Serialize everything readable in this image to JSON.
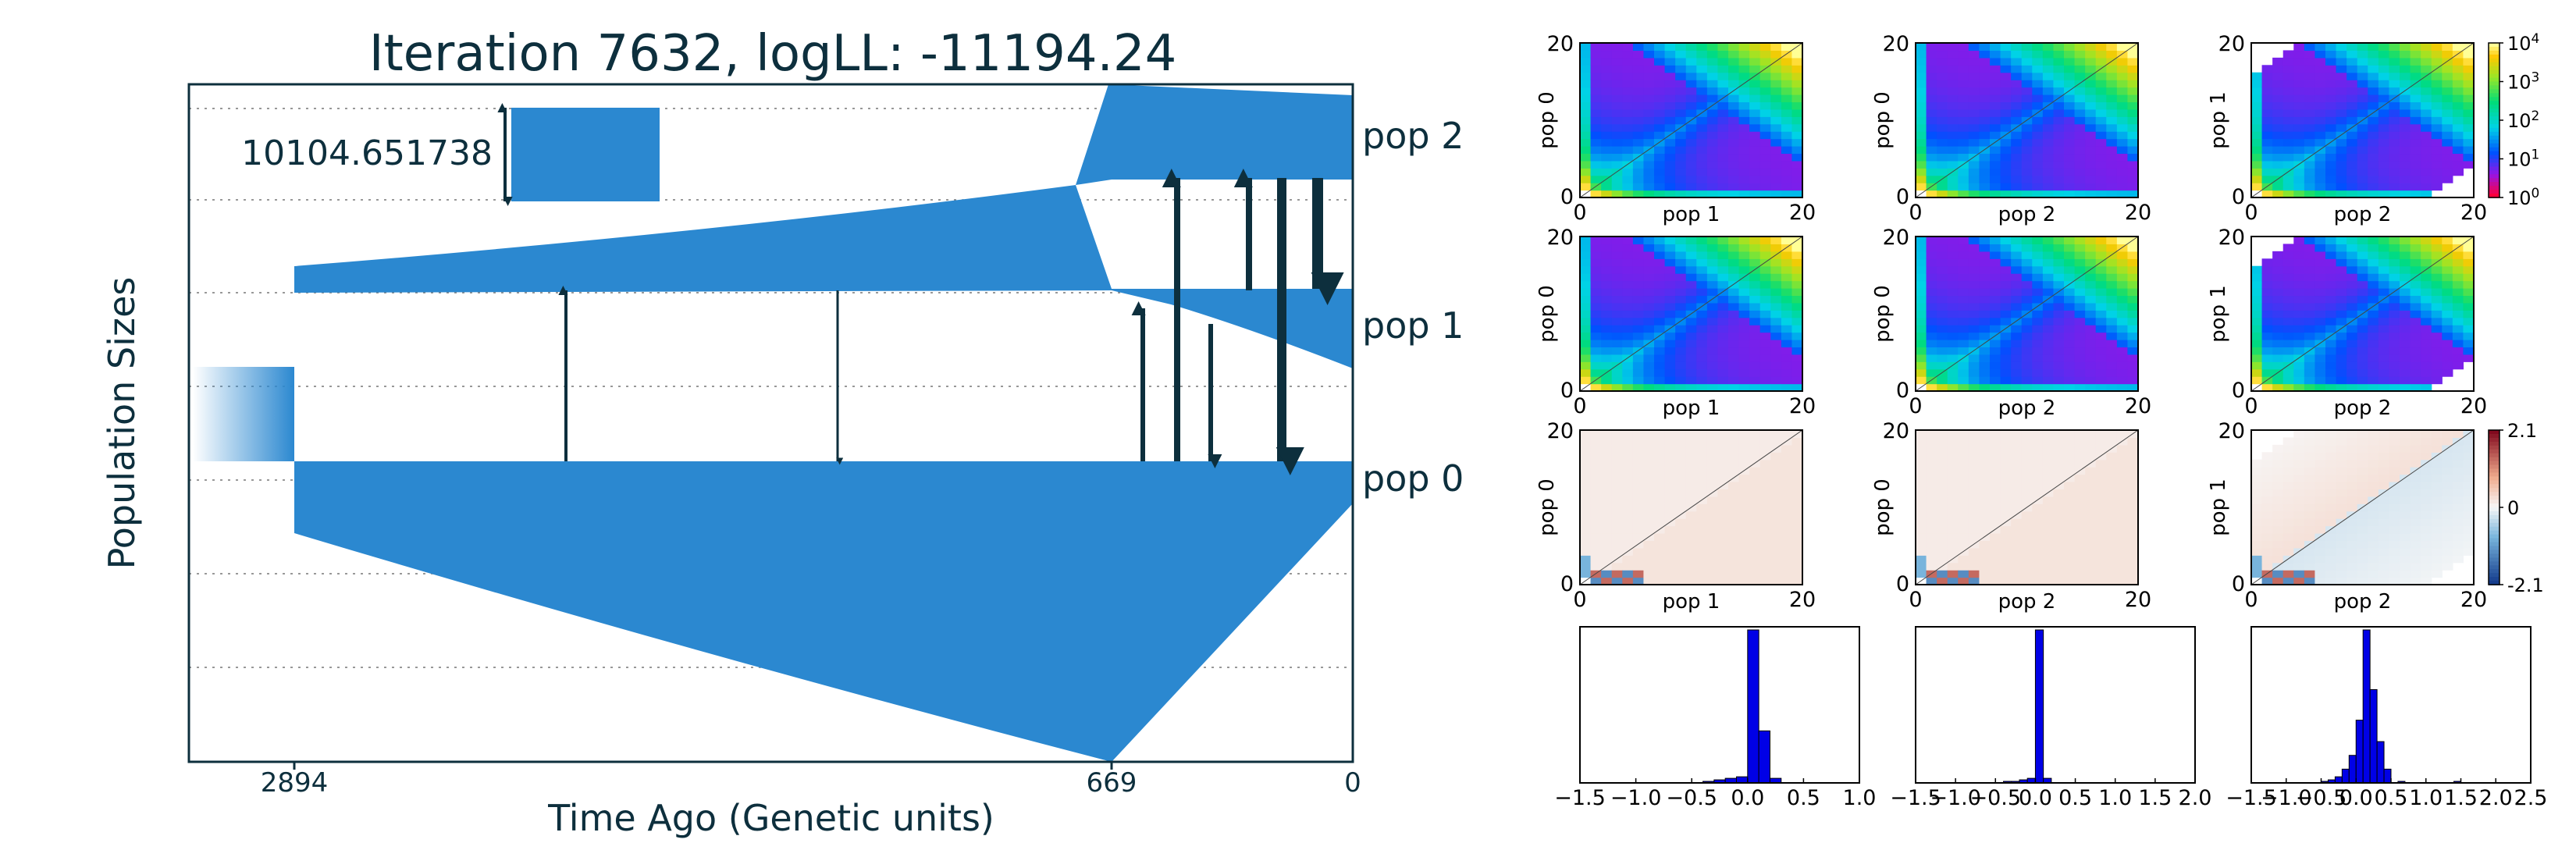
{
  "chart_data": [
    {
      "type": "area",
      "title": "Iteration 7632, logLL:  -11194.24",
      "xlabel": "Time Ago (Genetic units)",
      "ylabel": "Population Sizes",
      "x_ticks": [
        "2894",
        "669",
        "0"
      ],
      "scale_bar_label": "10104.651738",
      "populations": [
        "pop 2",
        "pop 1",
        "pop 0"
      ],
      "events": {
        "split_pop1_pop0_time": 2894,
        "split_pop2_pop1_time": 669
      },
      "migration_arrows": [
        {
          "from": "pop 0",
          "to": "pop 1",
          "time_fraction": 0.259
        },
        {
          "from": "pop 1",
          "to": "pop 0",
          "time_fraction": 0.508
        },
        {
          "from": "pop 0",
          "to": "pop 1",
          "time_fraction": 0.875
        },
        {
          "from": "pop 0",
          "to": "pop 2",
          "time_fraction": 0.905
        },
        {
          "from": "pop 1",
          "to": "pop 0",
          "time_fraction": 0.938
        },
        {
          "from": "pop 1",
          "to": "pop 2",
          "time_fraction": 0.97
        },
        {
          "from": "pop 2",
          "to": "pop 0",
          "time_fraction": 1.0
        },
        {
          "from": "pop 2",
          "to": "pop 1",
          "time_fraction": 1.03
        }
      ]
    },
    {
      "type": "heatmap",
      "description_rows": [
        "data SFS",
        "model SFS",
        "residuals",
        "residual histograms"
      ],
      "panels": [
        {
          "row": 1,
          "col": 1,
          "ylabel": "pop 0",
          "xlabel": "pop 1",
          "ticks": [
            "0",
            "20"
          ]
        },
        {
          "row": 1,
          "col": 2,
          "ylabel": "pop 0",
          "xlabel": "pop 2",
          "ticks": [
            "0",
            "20"
          ]
        },
        {
          "row": 1,
          "col": 3,
          "ylabel": "pop 1",
          "xlabel": "pop 2",
          "ticks": [
            "0",
            "20"
          ]
        },
        {
          "row": 2,
          "col": 1,
          "ylabel": "pop 0",
          "xlabel": "pop 1",
          "ticks": [
            "0",
            "20"
          ]
        },
        {
          "row": 2,
          "col": 2,
          "ylabel": "pop 0",
          "xlabel": "pop 2",
          "ticks": [
            "0",
            "20"
          ]
        },
        {
          "row": 2,
          "col": 3,
          "ylabel": "pop 1",
          "xlabel": "pop 2",
          "ticks": [
            "0",
            "20"
          ]
        },
        {
          "row": 3,
          "col": 1,
          "ylabel": "pop 0",
          "xlabel": "pop 1",
          "ticks": [
            "0",
            "20"
          ]
        },
        {
          "row": 3,
          "col": 2,
          "ylabel": "pop 0",
          "xlabel": "pop 2",
          "ticks": [
            "0",
            "20"
          ]
        },
        {
          "row": 3,
          "col": 3,
          "ylabel": "pop 1",
          "xlabel": "pop 2",
          "ticks": [
            "0",
            "20"
          ]
        }
      ],
      "colorbar_log": {
        "scale": "log",
        "ticks": [
          "10^4",
          "10^3",
          "10^2",
          "10^1",
          "10^0"
        ],
        "colormap": "gist_ncar-like"
      },
      "colorbar_residual": {
        "ticks": [
          "2.1",
          "0",
          "-2.1"
        ],
        "colormap": "RdBu_r"
      }
    },
    {
      "type": "bar",
      "description": "histograms of residuals",
      "histograms": [
        {
          "x_ticks": [
            "-1.5",
            "-1.0",
            "-0.5",
            "0.0",
            "0.5",
            "1.0"
          ],
          "xlim": [
            -1.5,
            1.0
          ],
          "bins": [
            -0.4,
            -0.3,
            -0.2,
            -0.1,
            0.0,
            0.1,
            0.2
          ],
          "values": [
            0.01,
            0.02,
            0.03,
            0.04,
            1.0,
            0.34,
            0.03
          ],
          "color": "#0000e6"
        },
        {
          "x_ticks": [
            "-1.5",
            "-1.0",
            "-0.5",
            "0.0",
            "0.5",
            "1.0",
            "1.5",
            "2.0"
          ],
          "xlim": [
            -1.5,
            2.0
          ],
          "bins": [
            -0.4,
            -0.3,
            -0.2,
            -0.1,
            0.0,
            0.1
          ],
          "values": [
            0.01,
            0.01,
            0.02,
            0.03,
            1.0,
            0.03
          ],
          "color": "#0000e6"
        },
        {
          "x_ticks": [
            "-1.5",
            "-1.0",
            "-0.5",
            "0.0",
            "0.5",
            "1.0",
            "1.5",
            "2.0",
            "2.5"
          ],
          "xlim": [
            -1.5,
            2.5
          ],
          "bins": [
            -0.5,
            -0.4,
            -0.3,
            -0.2,
            -0.1,
            0.0,
            0.1,
            0.2,
            0.3,
            0.4,
            0.6,
            1.4
          ],
          "values": [
            0.01,
            0.02,
            0.04,
            0.09,
            0.18,
            0.41,
            1.0,
            0.61,
            0.27,
            0.09,
            0.01,
            0.01
          ],
          "color": "#0000e6"
        }
      ]
    }
  ]
}
